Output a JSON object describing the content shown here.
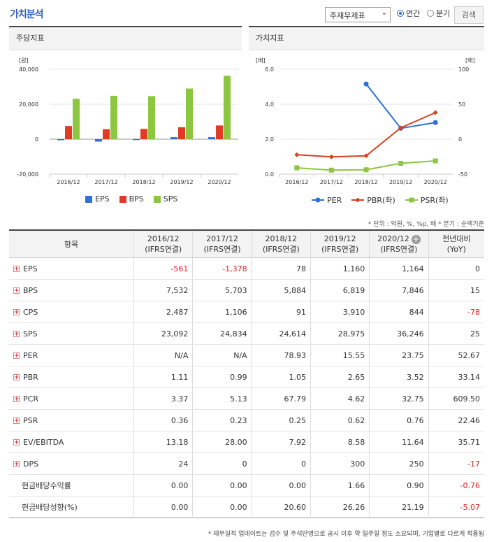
{
  "header": {
    "title": "가치분석",
    "select_value": "주재무제표",
    "radio_annual": "연간",
    "radio_quarter": "분기",
    "search_label": "검색"
  },
  "left_panel": {
    "title": "주당지표"
  },
  "right_panel": {
    "title": "가치지표"
  },
  "chart_data": [
    {
      "type": "bar",
      "title": "주당지표",
      "ylabel": "[원]",
      "categories": [
        "2016/12",
        "2017/12",
        "2018/12",
        "2019/12",
        "2020/12"
      ],
      "ylim": [
        -20000,
        40000
      ],
      "yticks": [
        "40,000",
        "20,000",
        "0",
        "-20,000"
      ],
      "series": [
        {
          "name": "EPS",
          "color": "#2e6fd8",
          "values": [
            -561,
            -1378,
            78,
            1160,
            1164
          ]
        },
        {
          "name": "BPS",
          "color": "#e03b24",
          "values": [
            7532,
            5703,
            5884,
            6819,
            7846
          ]
        },
        {
          "name": "SPS",
          "color": "#8dc63f",
          "values": [
            23092,
            24834,
            24614,
            28975,
            36246
          ]
        }
      ],
      "legend_position": "bottom"
    },
    {
      "type": "line",
      "title": "가치지표",
      "ylabel_left": "[배]",
      "ylabel_right": "[배]",
      "categories": [
        "2016/12",
        "2017/12",
        "2018/12",
        "2019/12",
        "2020/12"
      ],
      "ylim_left": [
        0,
        6
      ],
      "ylim_right": [
        -50,
        100
      ],
      "yticks_left": [
        "6.0",
        "4.0",
        "2.0",
        "0.0"
      ],
      "yticks_right": [
        "100",
        "50",
        "0",
        "-50"
      ],
      "series": [
        {
          "name": "PER",
          "axis": "right",
          "color": "#2e6fd8",
          "marker": "circle",
          "values": [
            null,
            null,
            78.93,
            15.55,
            23.75
          ]
        },
        {
          "name": "PBR(좌)",
          "axis": "left",
          "color": "#d9411e",
          "marker": "diamond",
          "values": [
            1.11,
            0.99,
            1.05,
            2.65,
            3.52
          ]
        },
        {
          "name": "PSR(좌)",
          "axis": "left",
          "color": "#8dc63f",
          "marker": "square",
          "values": [
            0.36,
            0.23,
            0.25,
            0.62,
            0.76
          ]
        }
      ],
      "legend_position": "bottom"
    }
  ],
  "unit_note": "* 단위 : 억원, %, %p, 배   * 분기 : 순액기준",
  "table": {
    "headers": [
      "항목",
      "2016/12",
      "2017/12",
      "2018/12",
      "2019/12",
      "2020/12",
      "전년대비"
    ],
    "header_subs": [
      "",
      "(IFRS연결)",
      "(IFRS연결)",
      "(IFRS연결)",
      "(IFRS연결)",
      "(IFRS연결)",
      "(YoY)"
    ],
    "rows": [
      {
        "label": "EPS",
        "expand": true,
        "cells": [
          "-561",
          "-1,378",
          "78",
          "1,160",
          "1,164",
          "0"
        ]
      },
      {
        "label": "BPS",
        "expand": true,
        "cells": [
          "7,532",
          "5,703",
          "5,884",
          "6,819",
          "7,846",
          "15"
        ]
      },
      {
        "label": "CPS",
        "expand": true,
        "cells": [
          "2,487",
          "1,106",
          "91",
          "3,910",
          "844",
          "-78"
        ]
      },
      {
        "label": "SPS",
        "expand": true,
        "cells": [
          "23,092",
          "24,834",
          "24,614",
          "28,975",
          "36,246",
          "25"
        ]
      },
      {
        "label": "PER",
        "expand": true,
        "cells": [
          "N/A",
          "N/A",
          "78.93",
          "15.55",
          "23.75",
          "52.67"
        ]
      },
      {
        "label": "PBR",
        "expand": true,
        "cells": [
          "1.11",
          "0.99",
          "1.05",
          "2.65",
          "3.52",
          "33.14"
        ]
      },
      {
        "label": "PCR",
        "expand": true,
        "cells": [
          "3.37",
          "5.13",
          "67.79",
          "4.62",
          "32.75",
          "609.50"
        ]
      },
      {
        "label": "PSR",
        "expand": true,
        "cells": [
          "0.36",
          "0.23",
          "0.25",
          "0.62",
          "0.76",
          "22.46"
        ]
      },
      {
        "label": "EV/EBITDA",
        "expand": true,
        "cells": [
          "13.18",
          "28.00",
          "7.92",
          "8.58",
          "11.64",
          "35.71"
        ]
      },
      {
        "label": "DPS",
        "expand": true,
        "cells": [
          "24",
          "0",
          "0",
          "300",
          "250",
          "-17"
        ]
      },
      {
        "label": "현금배당수익률",
        "expand": false,
        "cells": [
          "0.00",
          "0.00",
          "0.00",
          "1.66",
          "0.90",
          "-0.76"
        ]
      },
      {
        "label": "현금배당성향(%)",
        "expand": false,
        "cells": [
          "0.00",
          "0.00",
          "20.60",
          "26.26",
          "21.19",
          "-5.07"
        ]
      }
    ]
  },
  "footer_note": "* 재무실적 업데이트는 검수 및 주석반영으로 공시 이후 약 일주일 정도 소요되며, 기업별로 다르게 적용됨"
}
